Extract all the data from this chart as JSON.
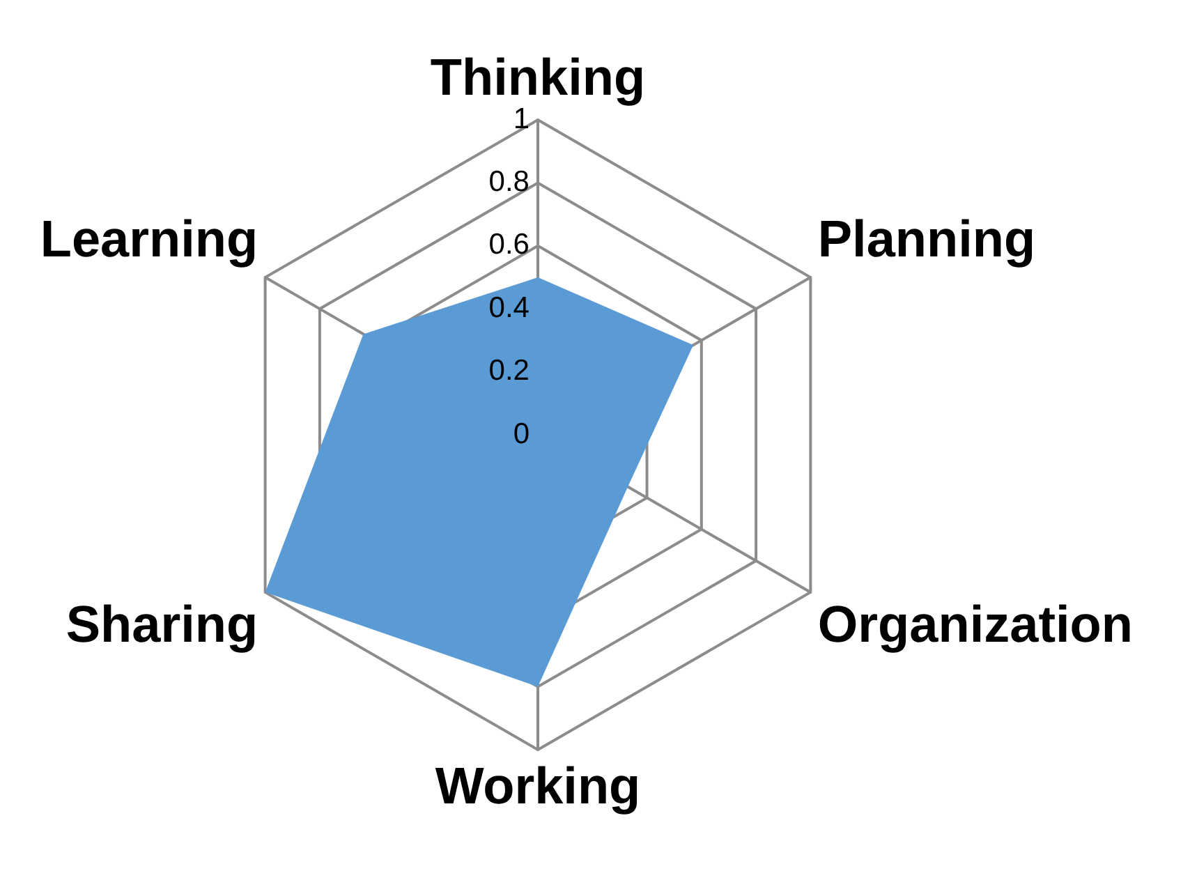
{
  "chart_data": {
    "type": "radar",
    "categories": [
      "Thinking",
      "Planning",
      "Organization",
      "Working",
      "Sharing",
      "Learning"
    ],
    "series": [
      {
        "color": "#5b9bd5",
        "values": [
          0.5,
          0.57,
          0.33,
          0.8,
          1,
          0.64
        ]
      }
    ],
    "ylim": [
      0,
      1
    ],
    "yticks": [
      0,
      0.2,
      0.4,
      0.6,
      0.8,
      1
    ],
    "grid": true,
    "legend": false,
    "marker": "none"
  }
}
